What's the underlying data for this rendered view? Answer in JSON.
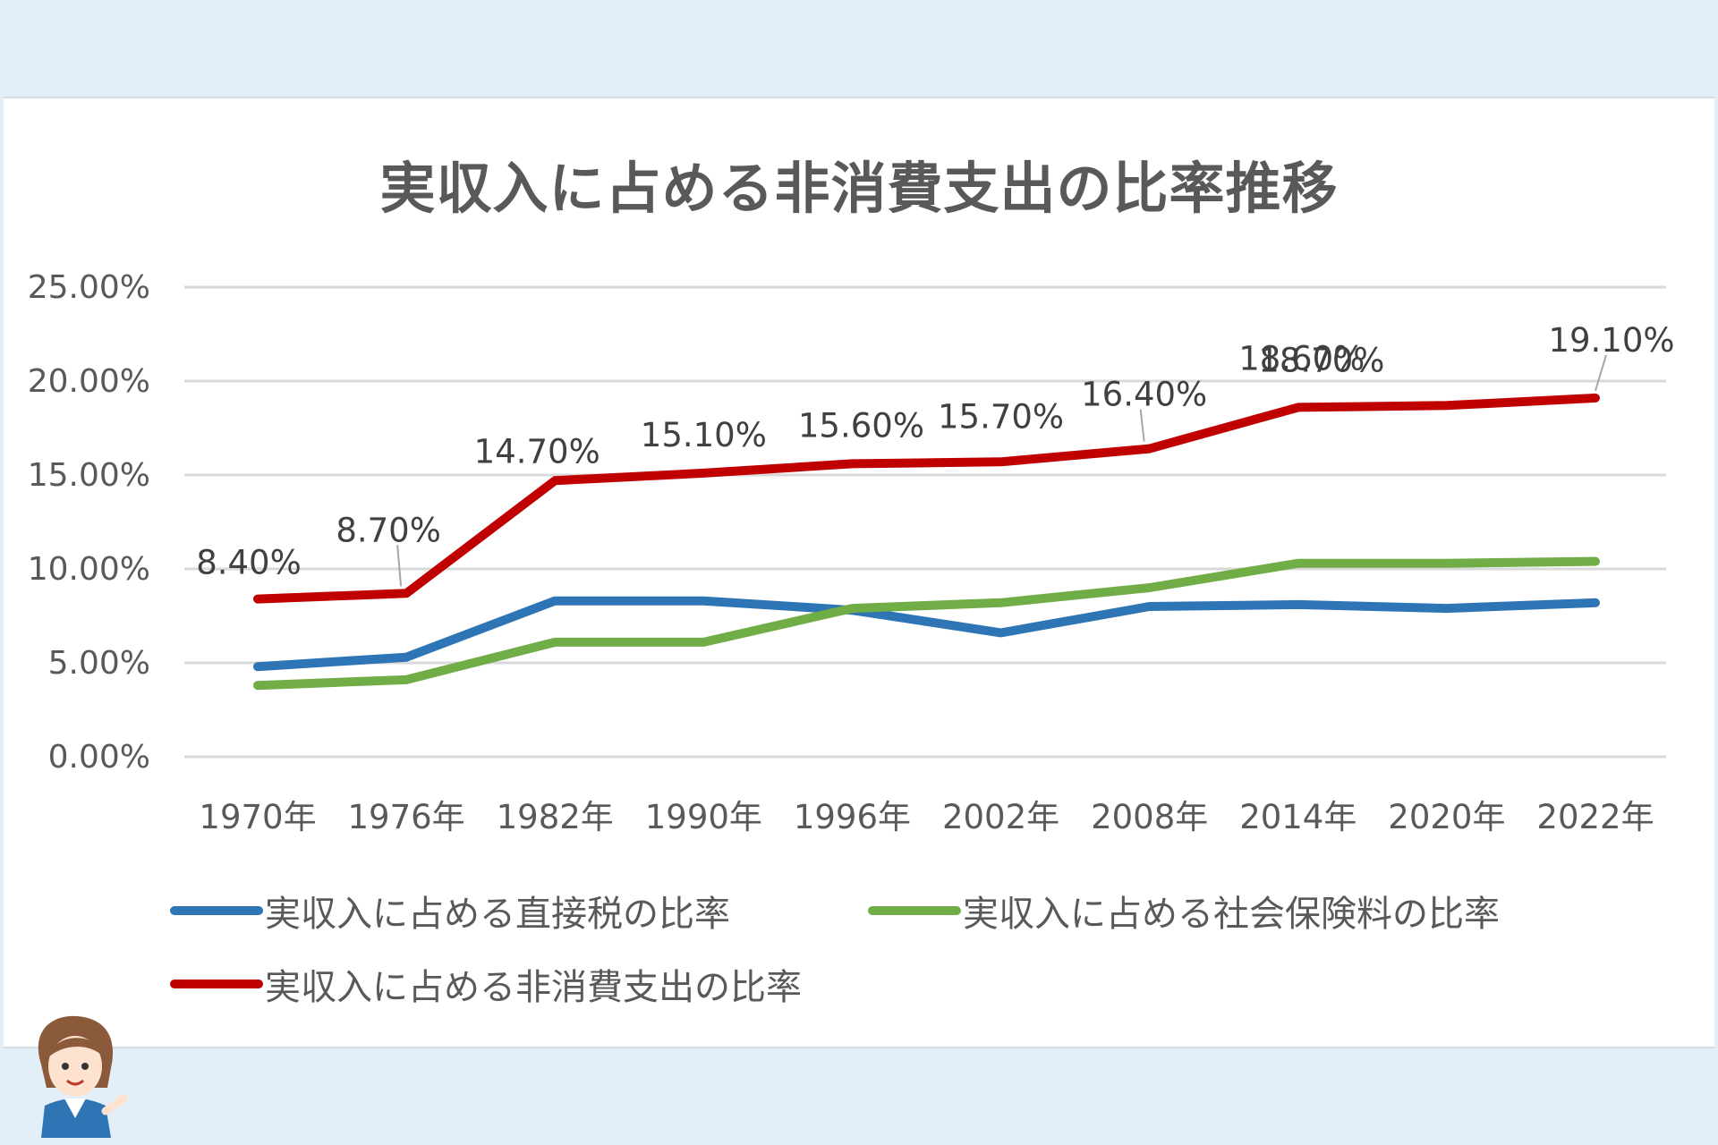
{
  "colors": {
    "background": "#e3eff8",
    "blue": "#2e75b6",
    "green": "#70ad47",
    "red": "#c00000"
  },
  "chart_data": {
    "type": "line",
    "title": "実収入に占める非消費支出の比率推移",
    "categories": [
      "1970年",
      "1976年",
      "1982年",
      "1990年",
      "1996年",
      "2002年",
      "2008年",
      "2014年",
      "2020年",
      "2022年"
    ],
    "ylim": [
      0,
      25
    ],
    "yticks": [
      "0.00%",
      "5.00%",
      "10.00%",
      "15.00%",
      "20.00%",
      "25.00%"
    ],
    "grid": true,
    "legend": "bottom",
    "series": [
      {
        "name": "実収入に占める直接税の比率",
        "color": "#2e75b6",
        "values": [
          4.8,
          5.3,
          8.3,
          8.3,
          7.8,
          6.6,
          8.0,
          8.1,
          7.9,
          8.2
        ]
      },
      {
        "name": "実収入に占める社会保険料の比率",
        "color": "#70ad47",
        "values": [
          3.8,
          4.1,
          6.1,
          6.1,
          7.9,
          8.2,
          9.0,
          10.3,
          10.3,
          10.4
        ]
      },
      {
        "name": "実収入に占める非消費支出の比率",
        "color": "#c00000",
        "values": [
          8.4,
          8.7,
          14.7,
          15.1,
          15.6,
          15.7,
          16.4,
          18.6,
          18.7,
          19.1
        ],
        "data_labels": [
          "8.40%",
          "8.70%",
          "14.70%",
          "15.10%",
          "15.60%",
          "15.70%",
          "16.40%",
          "18.60%",
          "18.70%",
          "19.10%"
        ]
      }
    ]
  }
}
